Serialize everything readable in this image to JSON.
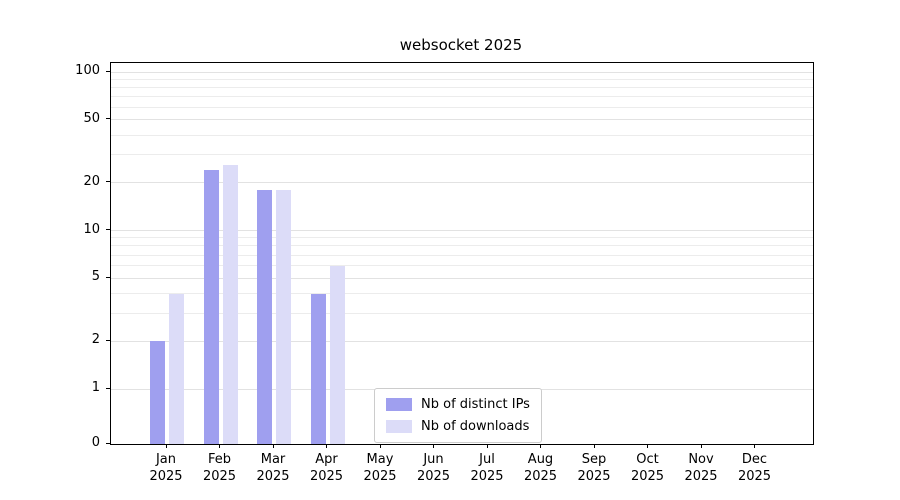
{
  "chart_data": {
    "type": "bar",
    "title": "websocket 2025",
    "scale": "symlog",
    "grid": true,
    "legend_position": "lower center",
    "categories": [
      "Jan",
      "Feb",
      "Mar",
      "Apr",
      "May",
      "Jun",
      "Jul",
      "Aug",
      "Sep",
      "Oct",
      "Nov",
      "Dec"
    ],
    "year_label": "2025",
    "y_ticks": [
      0,
      1,
      2,
      5,
      10,
      20,
      50,
      100
    ],
    "ylim": [
      0,
      110
    ],
    "xlabel": "",
    "ylabel": "",
    "series": [
      {
        "name": "Nb of distinct IPs",
        "color": "#9f9fef",
        "values": [
          2,
          24,
          18,
          4,
          0,
          0,
          0,
          0,
          0,
          0,
          0,
          0
        ]
      },
      {
        "name": "Nb of downloads",
        "color": "#dcdcf8",
        "values": [
          4,
          26,
          18,
          6,
          0,
          0,
          0,
          0,
          0,
          0,
          0,
          0
        ]
      }
    ],
    "colors": {
      "axis": "#000000",
      "grid": "#ececec",
      "legend_border": "#cccccc",
      "background": "#ffffff"
    }
  }
}
